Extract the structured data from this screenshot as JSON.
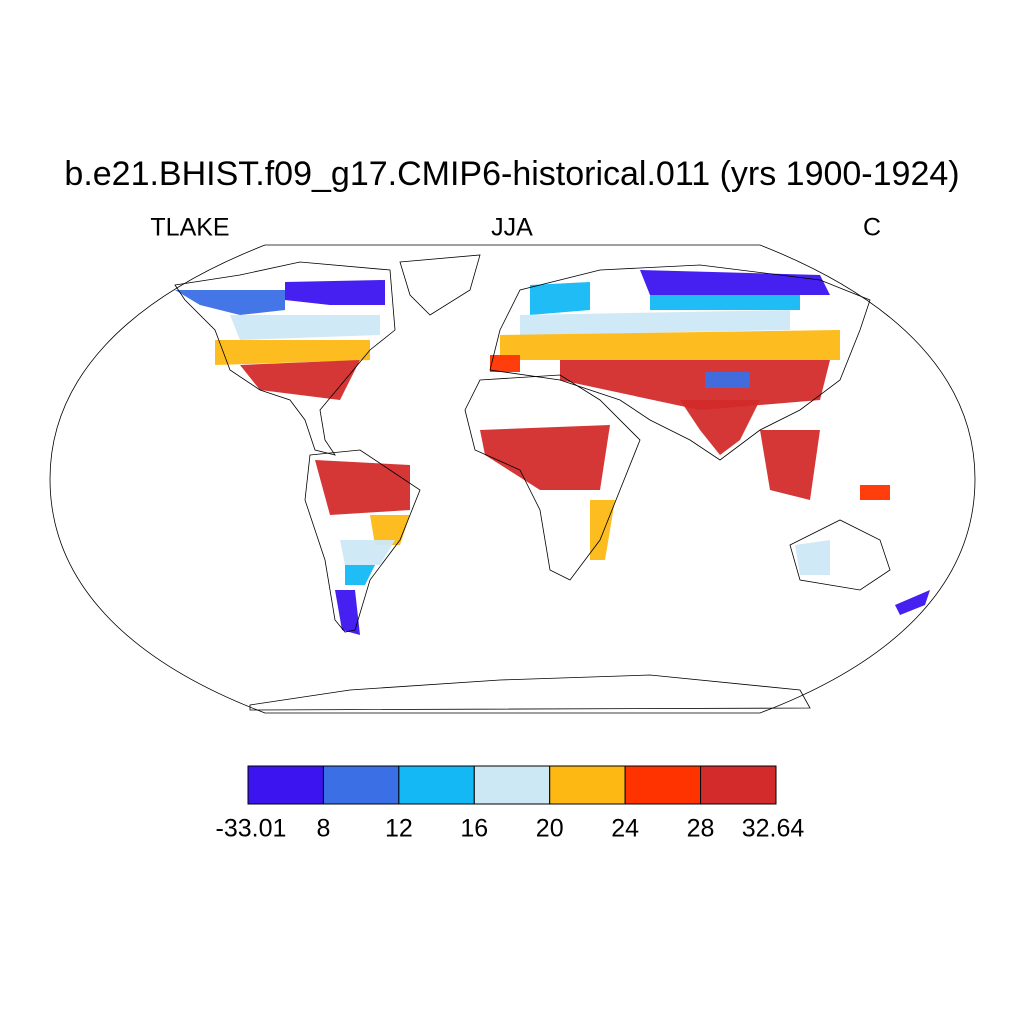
{
  "title": "b.e21.BHIST.f09_g17.CMIP6-historical.011 (yrs 1900-1924)",
  "left_string": "TLAKE",
  "center_string": "JJA",
  "right_string": "C",
  "colorbar": {
    "colors": [
      "#3c14f0",
      "#3a6fe6",
      "#13b8f5",
      "#cde8f5",
      "#fdb813",
      "#ff3300",
      "#d32b2b"
    ],
    "labels": [
      -33.01,
      8,
      12,
      16,
      20,
      24,
      28,
      32.64
    ]
  }
}
